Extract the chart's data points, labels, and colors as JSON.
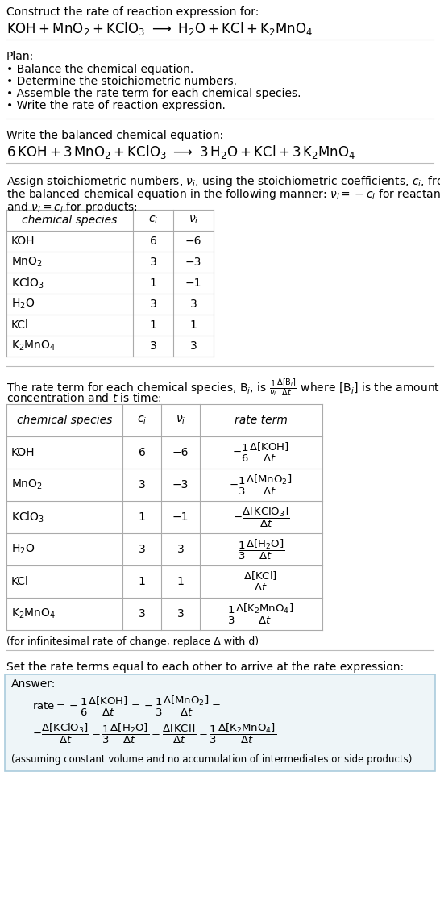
{
  "title_line1": "Construct the rate of reaction expression for:",
  "plan_title": "Plan:",
  "plan_items": [
    "• Balance the chemical equation.",
    "• Determine the stoichiometric numbers.",
    "• Assemble the rate term for each chemical species.",
    "• Write the rate of reaction expression."
  ],
  "balanced_label": "Write the balanced chemical equation:",
  "stoich_text1": "Assign stoichiometric numbers, $\\nu_i$, using the stoichiometric coefficients, $c_i$, from",
  "stoich_text2": "the balanced chemical equation in the following manner: $\\nu_i = -c_i$ for reactants",
  "stoich_text3": "and $\\nu_i = c_i$ for products:",
  "table1_headers": [
    "chemical species",
    "$c_i$",
    "$\\nu_i$"
  ],
  "table1_species": [
    "KOH",
    "MnO$_2$",
    "KClO$_3$",
    "H$_2$O",
    "KCl",
    "K$_2$MnO$_4$"
  ],
  "table1_ci": [
    "6",
    "3",
    "1",
    "3",
    "1",
    "3"
  ],
  "table1_nu": [
    "−6",
    "−3",
    "−1",
    "3",
    "1",
    "3"
  ],
  "rate_text2": "concentration and $t$ is time:",
  "table2_headers": [
    "chemical species",
    "$c_i$",
    "$\\nu_i$",
    "rate term"
  ],
  "table2_species": [
    "KOH",
    "MnO$_2$",
    "KClO$_3$",
    "H$_2$O",
    "KCl",
    "K$_2$MnO$_4$"
  ],
  "table2_ci": [
    "6",
    "3",
    "1",
    "3",
    "1",
    "3"
  ],
  "table2_nu": [
    "−6",
    "−3",
    "−1",
    "3",
    "1",
    "3"
  ],
  "table2_rate": [
    "$-\\dfrac{1}{6}\\dfrac{\\Delta[\\mathrm{KOH}]}{\\Delta t}$",
    "$-\\dfrac{1}{3}\\dfrac{\\Delta[\\mathrm{MnO_2}]}{\\Delta t}$",
    "$-\\dfrac{\\Delta[\\mathrm{KClO_3}]}{\\Delta t}$",
    "$\\dfrac{1}{3}\\dfrac{\\Delta[\\mathrm{H_2O}]}{\\Delta t}$",
    "$\\dfrac{\\Delta[\\mathrm{KCl}]}{\\Delta t}$",
    "$\\dfrac{1}{3}\\dfrac{\\Delta[\\mathrm{K_2MnO_4}]}{\\Delta t}$"
  ],
  "infinitesimal_note": "(for infinitesimal rate of change, replace Δ with d)",
  "set_rate_text": "Set the rate terms equal to each other to arrive at the rate expression:",
  "answer_label": "Answer:",
  "answer_note": "(assuming constant volume and no accumulation of intermediates or side products)",
  "line_color": "#bbbbbb",
  "answer_box_edge": "#aaccdd",
  "answer_box_face": "#eef5f8"
}
